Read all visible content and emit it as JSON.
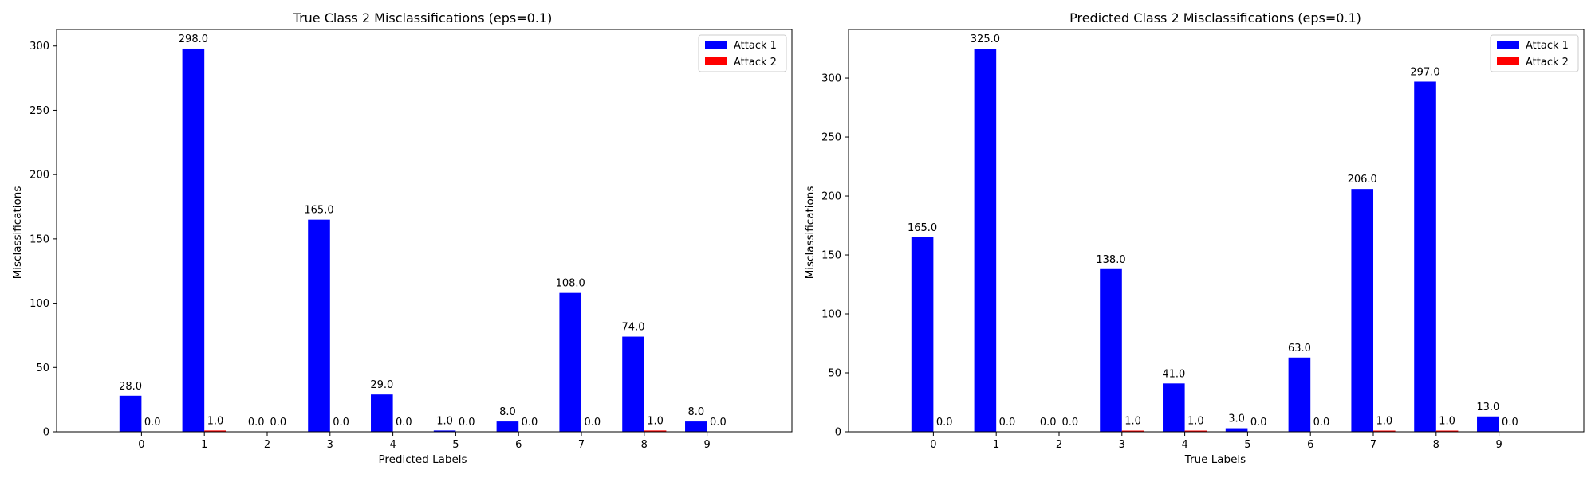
{
  "chart_data": [
    {
      "type": "bar",
      "title": "True Class 2 Misclassifications (eps=0.1)",
      "xlabel": "Predicted Labels",
      "ylabel": "Misclassifications",
      "categories": [
        "0",
        "1",
        "2",
        "3",
        "4",
        "5",
        "6",
        "7",
        "8",
        "9"
      ],
      "series": [
        {
          "name": "Attack 1",
          "color": "#0000ff",
          "values": [
            28.0,
            298.0,
            0.0,
            165.0,
            29.0,
            1.0,
            8.0,
            108.0,
            74.0,
            8.0
          ],
          "labels": [
            "28.0",
            "298.0",
            "0.0",
            "165.0",
            "29.0",
            "1.0",
            "8.0",
            "108.0",
            "74.0",
            "8.0"
          ]
        },
        {
          "name": "Attack 2",
          "color": "#ff0000",
          "values": [
            0.0,
            1.0,
            0.0,
            0.0,
            0.0,
            0.0,
            0.0,
            0.0,
            1.0,
            0.0
          ],
          "labels": [
            "0.0",
            "1.0",
            "0.0",
            "0.0",
            "0.0",
            "0.0",
            "0.0",
            "0.0",
            "1.0",
            "0.0"
          ]
        }
      ],
      "ylim": [
        0,
        312.85
      ],
      "yticks": [
        "0",
        "50",
        "100",
        "150",
        "200",
        "250",
        "300"
      ],
      "legend": "top-right",
      "grid": false
    },
    {
      "type": "bar",
      "title": "Predicted Class 2 Misclassifications (eps=0.1)",
      "xlabel": "True Labels",
      "ylabel": "Misclassifications",
      "categories": [
        "0",
        "1",
        "2",
        "3",
        "4",
        "5",
        "6",
        "7",
        "8",
        "9"
      ],
      "series": [
        {
          "name": "Attack 1",
          "color": "#0000ff",
          "values": [
            165.0,
            325.0,
            0.0,
            138.0,
            41.0,
            3.0,
            63.0,
            206.0,
            297.0,
            13.0
          ],
          "labels": [
            "165.0",
            "325.0",
            "0.0",
            "138.0",
            "41.0",
            "3.0",
            "63.0",
            "206.0",
            "297.0",
            "13.0"
          ]
        },
        {
          "name": "Attack 2",
          "color": "#ff0000",
          "values": [
            0.0,
            0.0,
            0.0,
            1.0,
            1.0,
            0.0,
            0.0,
            1.0,
            1.0,
            0.0
          ],
          "labels": [
            "0.0",
            "0.0",
            "0.0",
            "1.0",
            "1.0",
            "0.0",
            "0.0",
            "1.0",
            "1.0",
            "0.0"
          ]
        }
      ],
      "ylim": [
        0,
        341.25
      ],
      "yticks": [
        "0",
        "50",
        "100",
        "150",
        "200",
        "250",
        "300"
      ],
      "legend": "top-right",
      "grid": false
    }
  ]
}
